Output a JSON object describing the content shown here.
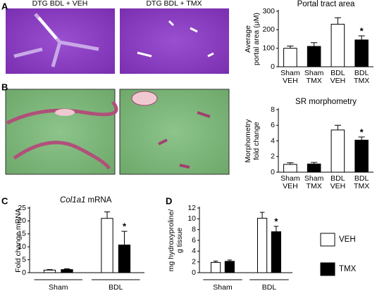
{
  "panels": [
    "A",
    "B",
    "C",
    "D"
  ],
  "images": [
    "DTG BDL + VEH",
    "DTG BDL + TMX"
  ],
  "chart_data": [
    {
      "type": "bar",
      "title": "Portal tract area",
      "ylabel": [
        "Average",
        "portal area (μM)"
      ],
      "categories": [
        [
          "Sham",
          "VEH"
        ],
        [
          "Sham",
          "TMX"
        ],
        [
          "BDL",
          "VEH"
        ],
        [
          "BDL",
          "TMX"
        ]
      ],
      "values": [
        100,
        110,
        230,
        145
      ],
      "errors": [
        12,
        20,
        35,
        22
      ],
      "colors": [
        "#ffffff",
        "#000000",
        "#ffffff",
        "#000000"
      ],
      "significance": [
        null,
        null,
        null,
        "*"
      ],
      "ylim": [
        0,
        300
      ],
      "yticks": [
        0,
        100,
        200,
        300
      ]
    },
    {
      "type": "bar",
      "title": "SR morphometry",
      "ylabel": [
        "Morphometry",
        "fold change"
      ],
      "categories": [
        [
          "Sham",
          "VEH"
        ],
        [
          "Sham",
          "TMX"
        ],
        [
          "BDL",
          "VEH"
        ],
        [
          "BDL",
          "TMX"
        ]
      ],
      "values": [
        1,
        1.05,
        5.4,
        4.1
      ],
      "errors": [
        0.2,
        0.2,
        0.6,
        0.4
      ],
      "colors": [
        "#ffffff",
        "#000000",
        "#ffffff",
        "#000000"
      ],
      "significance": [
        null,
        null,
        null,
        "*"
      ],
      "ylim": [
        0,
        8
      ],
      "yticks": [
        0,
        2,
        4,
        6,
        8
      ]
    },
    {
      "type": "bar",
      "title_gene": "Col1a1",
      "title": "mRNA",
      "ylabel": [
        "Fold change mRNA"
      ],
      "categories": [
        "Sham",
        "BDL"
      ],
      "series": [
        {
          "color": "#ffffff",
          "values": [
            1,
            21
          ],
          "errors": [
            0.2,
            2.5
          ],
          "significance": [
            null,
            null
          ]
        },
        {
          "color": "#000000",
          "values": [
            1.2,
            10.7
          ],
          "errors": [
            0.3,
            5.3
          ],
          "significance": [
            null,
            "*"
          ]
        }
      ],
      "ylim": [
        0,
        25
      ],
      "yticks": [
        0,
        5,
        10,
        15,
        20,
        25
      ]
    },
    {
      "type": "bar",
      "ylabel": [
        "mg hydroxyproline/",
        "g tissue"
      ],
      "categories": [
        "Sham",
        "BDL"
      ],
      "series": [
        {
          "name": "VEH",
          "color": "#ffffff",
          "values": [
            1.9,
            10.1
          ],
          "errors": [
            0.25,
            1.1
          ],
          "significance": [
            null,
            null
          ]
        },
        {
          "name": "TMX",
          "color": "#000000",
          "values": [
            2.1,
            7.6
          ],
          "errors": [
            0.25,
            1.0
          ],
          "significance": [
            null,
            "*"
          ]
        }
      ],
      "ylim": [
        0,
        12
      ],
      "yticks": [
        0,
        2,
        4,
        6,
        8,
        10,
        12
      ],
      "legend": "right"
    }
  ]
}
